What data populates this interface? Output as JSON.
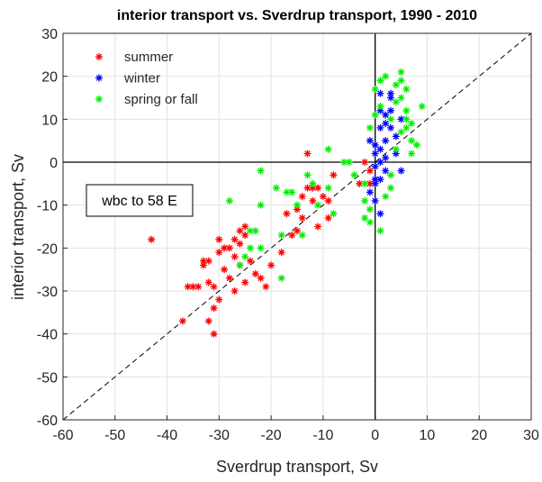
{
  "chart_data": {
    "type": "scatter",
    "title": "interior transport vs. Sverdrup transport, 1990 - 2010",
    "x_label": "Sverdrup transport, Sv",
    "y_label": "interior transport, Sv",
    "annotation": "wbc to 58 E",
    "xlim": [
      -60,
      30
    ],
    "ylim": [
      -60,
      30
    ],
    "xticks": [
      -60,
      -50,
      -40,
      -30,
      -20,
      -10,
      0,
      10,
      20,
      30
    ],
    "yticks": [
      -60,
      -50,
      -40,
      -30,
      -20,
      -10,
      0,
      10,
      20,
      30
    ],
    "grid": true,
    "legend": "northwest",
    "series": [
      {
        "name": "summer",
        "color": "#ff0000",
        "x": [
          -43,
          -37,
          -36,
          -35,
          -34,
          -33,
          -33,
          -32,
          -32,
          -32,
          -31,
          -31,
          -31,
          -30,
          -30,
          -30,
          -29,
          -29,
          -28,
          -28,
          -27,
          -27,
          -27,
          -26,
          -26,
          -26,
          -25,
          -25,
          -24,
          -23,
          -22,
          -21,
          -20,
          -18,
          -17,
          -16,
          -15,
          -15,
          -14,
          -14,
          -13,
          -13,
          -12,
          -12,
          -11,
          -11,
          -10,
          -9,
          -9,
          -8,
          -3,
          -1,
          -1,
          -2,
          -25
        ],
        "y": [
          -18,
          -37,
          -29,
          -29,
          -29,
          -23,
          -24,
          -23,
          -28,
          -37,
          -40,
          -34,
          -29,
          -18,
          -21,
          -32,
          -20,
          -25,
          -20,
          -27,
          -18,
          -22,
          -30,
          -16,
          -19,
          -24,
          -17,
          -28,
          -23,
          -26,
          -27,
          -29,
          -24,
          -21,
          -12,
          -17,
          -11,
          -16,
          -13,
          -8,
          -6,
          2,
          -6,
          -9,
          -15,
          -6,
          -8,
          -9,
          -13,
          -3,
          -5,
          -2,
          -5,
          0,
          -15
        ]
      },
      {
        "name": "winter",
        "color": "#0000ff",
        "x": [
          -1,
          0,
          0,
          0,
          0,
          0,
          1,
          1,
          1,
          1,
          1,
          1,
          2,
          2,
          2,
          2,
          3,
          3,
          3,
          3,
          4,
          4,
          5,
          5,
          0,
          -1,
          1,
          2
        ],
        "y": [
          5,
          4,
          2,
          -1,
          -5,
          -9,
          -12,
          0,
          3,
          8,
          12,
          16,
          1,
          5,
          -2,
          9,
          8,
          12,
          15,
          16,
          2,
          6,
          -2,
          10,
          -4,
          -7,
          -4,
          11
        ]
      },
      {
        "name": "spring or fall",
        "color": "#00ee00",
        "x": [
          -28,
          -26,
          -25,
          -24,
          -24,
          -23,
          -22,
          -22,
          -22,
          -19,
          -18,
          -18,
          -17,
          -16,
          -15,
          -14,
          -13,
          -12,
          -11,
          -9,
          -9,
          -8,
          -6,
          -5,
          -4,
          -2,
          -2,
          -1,
          -2,
          -1,
          0,
          1,
          1,
          2,
          3,
          4,
          4,
          5,
          5,
          6,
          6,
          7,
          7,
          8,
          9,
          4,
          5,
          6,
          3,
          2,
          -1,
          1,
          3,
          0,
          5,
          6,
          7
        ],
        "y": [
          -9,
          -24,
          -22,
          -16,
          -20,
          -16,
          -2,
          -10,
          -20,
          -6,
          -27,
          -17,
          -7,
          -7,
          -10,
          -17,
          -3,
          -5,
          -10,
          -6,
          3,
          -12,
          0,
          0,
          -3,
          -9,
          -13,
          -14,
          -5,
          8,
          11,
          13,
          19,
          20,
          10,
          14,
          18,
          21,
          19,
          12,
          8,
          5,
          2,
          4,
          13,
          3,
          7,
          17,
          -6,
          -8,
          -11,
          -16,
          -3,
          17,
          15,
          10,
          9
        ]
      }
    ]
  }
}
